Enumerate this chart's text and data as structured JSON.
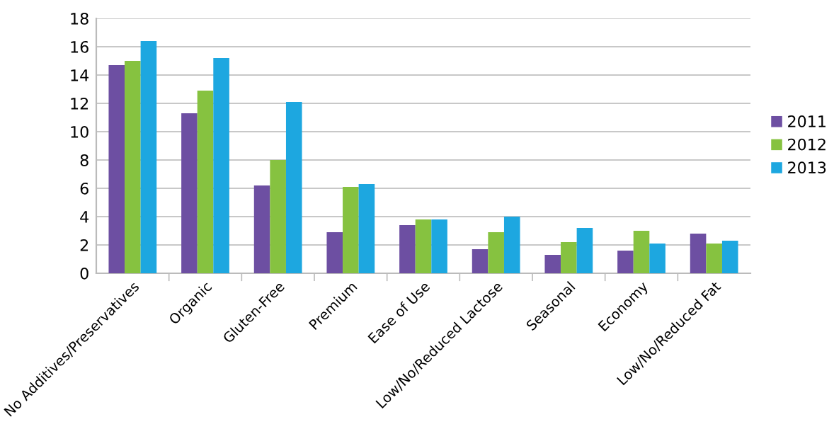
{
  "chart_data": {
    "type": "bar",
    "categories": [
      "No Additives/Preservatives",
      "Organic",
      "Gluten-Free",
      "Premium",
      "Ease of Use",
      "Low/No/Reduced Lactose",
      "Seasonal",
      "Economy",
      "Low/No/Reduced Fat"
    ],
    "series": [
      {
        "name": "2011",
        "color": "#6d4fa2",
        "values": [
          14.7,
          11.3,
          6.2,
          2.9,
          3.4,
          1.7,
          1.3,
          1.6,
          2.8
        ]
      },
      {
        "name": "2012",
        "color": "#86c240",
        "values": [
          15.0,
          12.9,
          8.0,
          6.1,
          3.8,
          2.9,
          2.2,
          3.0,
          2.1
        ]
      },
      {
        "name": "2013",
        "color": "#1da7e0",
        "values": [
          16.4,
          15.2,
          12.1,
          6.3,
          3.8,
          4.0,
          3.2,
          2.1,
          2.3
        ]
      }
    ],
    "ylim": [
      0,
      18
    ],
    "yticks": [
      0,
      2,
      4,
      6,
      8,
      10,
      12,
      14,
      16,
      18
    ],
    "grid": "y",
    "legend": "right"
  }
}
